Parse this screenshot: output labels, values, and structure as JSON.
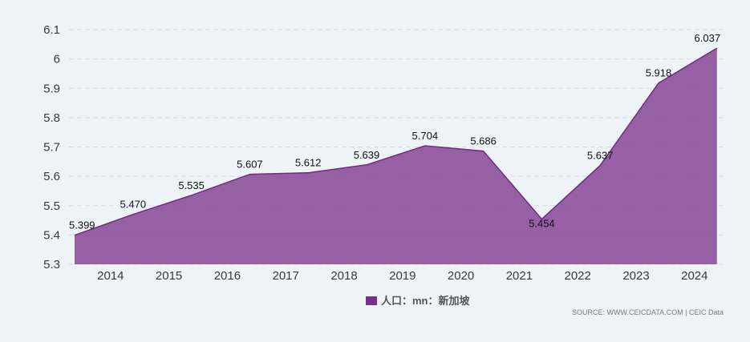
{
  "chart_data": {
    "type": "area",
    "x": [
      "",
      "2014",
      "2015",
      "2016",
      "2017",
      "2018",
      "2019",
      "2020",
      "2021",
      "2022",
      "2023",
      "2024"
    ],
    "series": [
      {
        "name": "人口：mn：新加坡",
        "values": [
          5.399,
          5.47,
          5.535,
          5.607,
          5.612,
          5.639,
          5.704,
          5.686,
          5.454,
          5.637,
          5.918,
          6.037
        ],
        "labels": [
          "5.399",
          "5.470",
          "5.535",
          "5.607",
          "5.612",
          "5.639",
          "5.704",
          "5.686",
          "5.454",
          "5.637",
          "5.918",
          "6.037"
        ],
        "color": "#8b4a98",
        "fill_opacity": 0.88
      }
    ],
    "xtick_labels": [
      "2014",
      "2015",
      "2016",
      "2017",
      "2018",
      "2019",
      "2020",
      "2021",
      "2022",
      "2023",
      "2024"
    ],
    "yticks": [
      5.3,
      5.4,
      5.5,
      5.6,
      5.7,
      5.8,
      5.9,
      6,
      6.1
    ],
    "ytick_labels": [
      "5.3",
      "5.4",
      "5.5",
      "5.6",
      "5.7",
      "5.8",
      "5.9",
      "6",
      "6.1"
    ],
    "ylim": [
      5.3,
      6.1
    ],
    "grid": true,
    "legend": {
      "label": "人口：mn：新加坡",
      "color": "#7b2d8b",
      "position": "bottom-center"
    },
    "title": "",
    "xlabel": "",
    "ylabel": ""
  },
  "source": {
    "text": "SOURCE: WWW.CEICDATA.COM | CEIC Data"
  }
}
